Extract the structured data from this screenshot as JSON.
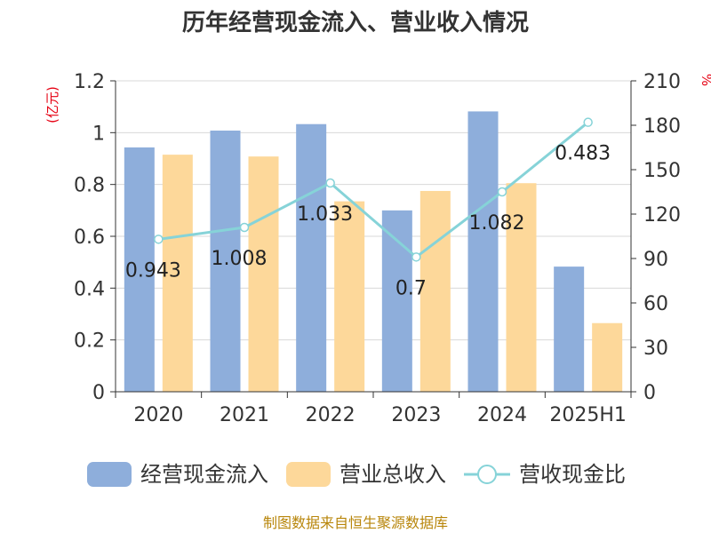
{
  "chart_data": {
    "type": "bar",
    "title": "历年经营现金流入、营业收入情况",
    "categories": [
      "2020",
      "2021",
      "2022",
      "2023",
      "2024",
      "2025H1"
    ],
    "y_left_unit": "(亿元)",
    "y_right_unit": "%",
    "ylim_left": [
      0,
      1.2
    ],
    "ylim_right": [
      0,
      210
    ],
    "y_left_ticks": [
      "0",
      "0.2",
      "0.4",
      "0.6",
      "0.8",
      "1",
      "1.2"
    ],
    "y_right_ticks": [
      "0",
      "30",
      "60",
      "90",
      "120",
      "150",
      "180",
      "210"
    ],
    "grid": true,
    "legend_position": "bottom",
    "series": [
      {
        "name": "经营现金流入",
        "kind": "bar",
        "axis": "left",
        "color": "#8eaedb",
        "values": [
          0.943,
          1.008,
          1.033,
          0.7,
          1.082,
          0.483
        ],
        "labels": [
          "0.943",
          "1.008",
          "1.033",
          "0.7",
          "1.082",
          "0.483"
        ]
      },
      {
        "name": "营业总收入",
        "kind": "bar",
        "axis": "left",
        "color": "#fdd89a",
        "values": [
          0.915,
          0.908,
          0.735,
          0.775,
          0.805,
          0.265
        ]
      },
      {
        "name": "营收现金比",
        "kind": "line",
        "axis": "right",
        "color": "#86d3d8",
        "values": [
          103,
          111,
          141,
          91,
          135,
          182
        ]
      }
    ]
  },
  "footer": "制图数据来自恒生聚源数据库"
}
